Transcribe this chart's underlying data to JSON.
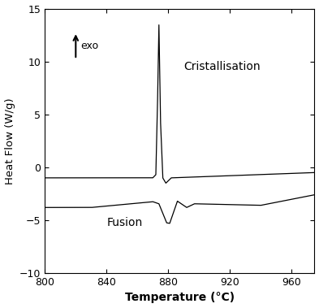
{
  "title": "",
  "xlabel": "Temperature (°C)",
  "ylabel": "Heat Flow (W/g)",
  "xlim": [
    800,
    975
  ],
  "ylim": [
    -10,
    15
  ],
  "xticks": [
    800,
    840,
    880,
    920,
    960
  ],
  "yticks": [
    -10,
    -5,
    0,
    5,
    10,
    15
  ],
  "line_color": "#000000",
  "background_color": "#ffffff",
  "annotation_cristallisation": "Cristallisation",
  "annotation_fusion": "Fusion",
  "exo_label": "exo",
  "cryst_x": 890,
  "cryst_y": 9.5,
  "fusion_x": 840,
  "fusion_y": -5.2
}
